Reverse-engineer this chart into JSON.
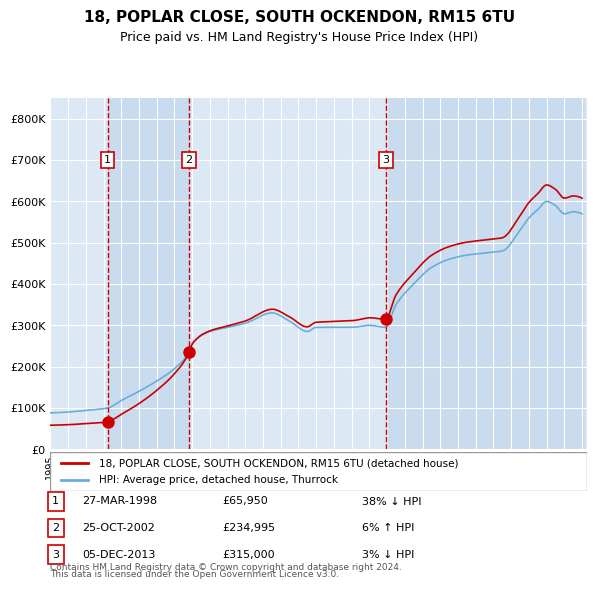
{
  "title": "18, POPLAR CLOSE, SOUTH OCKENDON, RM15 6TU",
  "subtitle": "Price paid vs. HM Land Registry's House Price Index (HPI)",
  "legend_line1": "18, POPLAR CLOSE, SOUTH OCKENDON, RM15 6TU (detached house)",
  "legend_line2": "HPI: Average price, detached house, Thurrock",
  "transactions": [
    {
      "num": 1,
      "date": "1998-03-27",
      "price": 65950,
      "pct": "38%",
      "dir": "↓"
    },
    {
      "num": 2,
      "date": "2002-10-25",
      "price": 234995,
      "pct": "6%",
      "dir": "↑"
    },
    {
      "num": 3,
      "date": "2013-12-05",
      "price": 315000,
      "pct": "3%",
      "dir": "↓"
    }
  ],
  "footer_line1": "Contains HM Land Registry data © Crown copyright and database right 2024.",
  "footer_line2": "This data is licensed under the Open Government Licence v3.0.",
  "ymin": 0,
  "ymax": 850000,
  "plot_bg_color": "#dce9f5",
  "shade_color": "#c8dbef",
  "grid_color": "#ffffff",
  "hpi_line_color": "#6aaed6",
  "price_line_color": "#cc0000",
  "marker_color": "#cc0000",
  "dashed_color": "#cc0000",
  "box_color": "#cc0000"
}
